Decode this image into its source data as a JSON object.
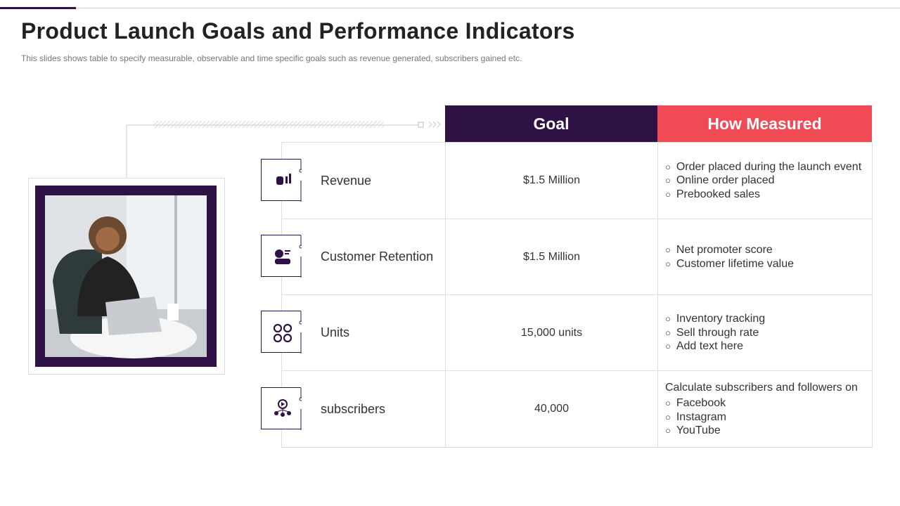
{
  "header": {
    "title": "Product Launch Goals and Performance Indicators",
    "subtitle": "This slides shows table to specify measurable, observable  and time specific goals such as revenue  generated, subscribers gained etc."
  },
  "table": {
    "columns": [
      "Goal",
      "How Measured"
    ],
    "rows": [
      {
        "label": "Revenue",
        "goal": "$1.5 Million",
        "measures": [
          "Order placed during the launch event",
          "Online order placed",
          "Prebooked sales"
        ]
      },
      {
        "label": "Customer Retention",
        "goal": "$1.5 Million",
        "measures": [
          "Net promoter score",
          "Customer lifetime value"
        ]
      },
      {
        "label": "Units",
        "goal": "15,000 units",
        "measures": [
          "Inventory  tracking",
          "Sell through rate",
          "Add text here"
        ]
      },
      {
        "label": "subscribers",
        "goal": "40,000",
        "intro": "Calculate subscribers and followers on",
        "measures": [
          "Facebook",
          "Instagram",
          "YouTube"
        ]
      }
    ]
  }
}
